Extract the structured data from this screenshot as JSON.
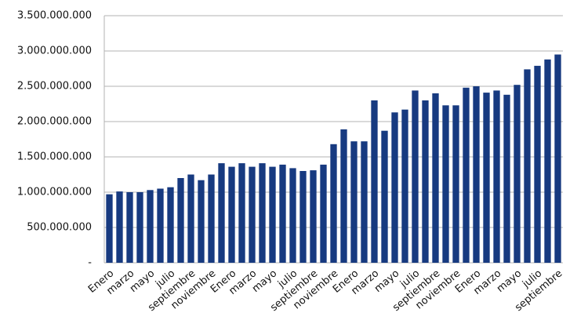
{
  "chart_data": {
    "type": "bar",
    "categories": [
      "Enero",
      null,
      "marzo",
      null,
      "mayo",
      null,
      "julio",
      null,
      "septiembre",
      null,
      "noviembre",
      null,
      "Enero",
      null,
      "marzo",
      null,
      "mayo",
      null,
      "julio",
      null,
      "septiembre",
      null,
      "noviembre",
      null,
      "Enero",
      null,
      "marzo",
      null,
      "mayo",
      null,
      "julio",
      null,
      "septiembre",
      null,
      "noviembre",
      null,
      "Enero",
      null,
      "marzo",
      null,
      "mayo",
      null,
      "julio",
      null,
      "septiembre"
    ],
    "values": [
      970000000,
      1010000000,
      1000000000,
      1000000000,
      1030000000,
      1050000000,
      1070000000,
      1200000000,
      1250000000,
      1170000000,
      1250000000,
      1410000000,
      1360000000,
      1410000000,
      1360000000,
      1410000000,
      1360000000,
      1390000000,
      1340000000,
      1300000000,
      1310000000,
      1390000000,
      1680000000,
      1890000000,
      1720000000,
      1720000000,
      2300000000,
      1870000000,
      2130000000,
      2170000000,
      2440000000,
      2300000000,
      2400000000,
      2230000000,
      2230000000,
      2480000000,
      2500000000,
      2410000000,
      2440000000,
      2380000000,
      2520000000,
      2740000000,
      2790000000,
      2880000000,
      2950000000
    ],
    "color": "#173a80",
    "ylim": [
      0,
      3500000000
    ],
    "yticks": [
      {
        "value": 0,
        "label": "-"
      },
      {
        "value": 500000000,
        "label": "500.000.000"
      },
      {
        "value": 1000000000,
        "label": "1.000.000.000"
      },
      {
        "value": 1500000000,
        "label": "1.500.000.000"
      },
      {
        "value": 2000000000,
        "label": "2.000.000.000"
      },
      {
        "value": 2500000000,
        "label": "2.500.000.000"
      },
      {
        "value": 3000000000,
        "label": "3.000.000.000"
      },
      {
        "value": 3500000000,
        "label": "3.500.000.000"
      }
    ],
    "grid": true
  }
}
